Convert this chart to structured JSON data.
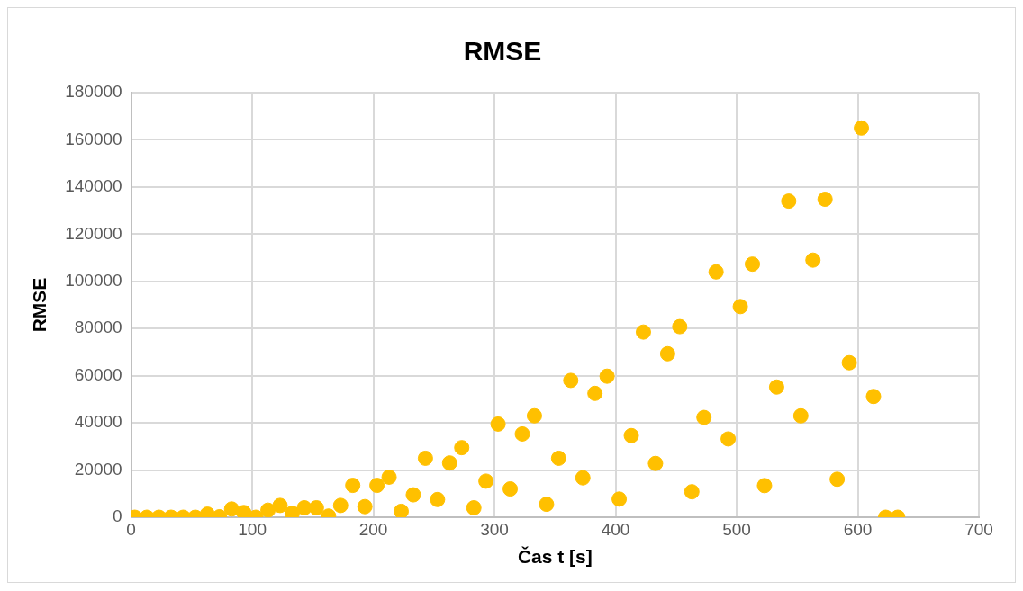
{
  "chart_data": {
    "type": "scatter",
    "title": "RMSE",
    "xlabel": "Čas t [s]",
    "ylabel": "RMSE",
    "x": [
      3,
      13,
      23,
      33,
      43,
      53,
      63,
      73,
      83,
      93,
      103,
      113,
      123,
      133,
      143,
      153,
      163,
      173,
      183,
      193,
      203,
      213,
      223,
      233,
      243,
      253,
      263,
      273,
      283,
      293,
      303,
      313,
      323,
      333,
      343,
      353,
      363,
      373,
      383,
      393,
      403,
      413,
      423,
      433,
      443,
      453,
      463,
      473,
      483,
      493,
      503,
      513,
      523,
      533,
      543,
      553,
      563,
      573,
      583,
      593,
      603,
      613,
      623,
      633
    ],
    "series": [
      {
        "color": "#ffc000",
        "values": [
          0,
          0,
          0,
          0,
          0,
          0,
          1300,
          200,
          3500,
          2000,
          0,
          3000,
          5000,
          1700,
          4000,
          4000,
          500,
          5000,
          13500,
          4500,
          13500,
          17000,
          2500,
          9500,
          25000,
          7500,
          23000,
          29500,
          4000,
          15300,
          39500,
          12000,
          35300,
          43000,
          5500,
          25000,
          58000,
          16700,
          52500,
          59800,
          7700,
          34600,
          78500,
          22800,
          69300,
          80800,
          10800,
          42300,
          104000,
          33200,
          89300,
          107300,
          13400,
          55200,
          134000,
          43000,
          109000,
          134800,
          16100,
          65500,
          165000,
          51200,
          0,
          0
        ]
      }
    ],
    "xlim": [
      0,
      700
    ],
    "xticks": [
      0,
      100,
      200,
      300,
      400,
      500,
      600,
      700
    ],
    "ylim": [
      0,
      180000
    ],
    "yticks": [
      0,
      20000,
      40000,
      60000,
      80000,
      100000,
      120000,
      140000,
      160000,
      180000
    ],
    "grid": true,
    "legend": false,
    "marker": "circle"
  }
}
